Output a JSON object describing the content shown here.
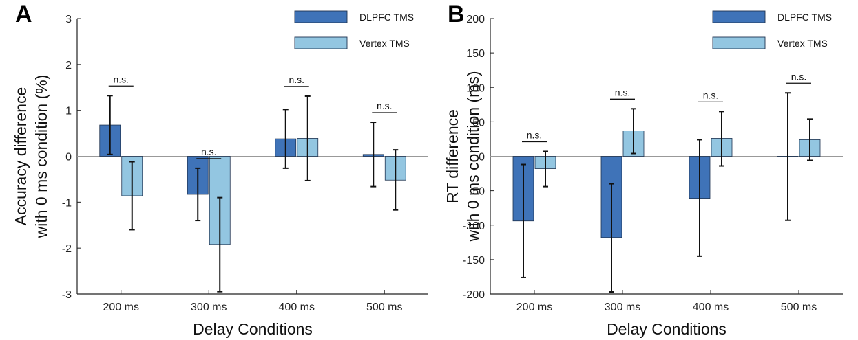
{
  "colors": {
    "dlpfc": "#3f73b8",
    "vertex": "#93c6e1",
    "axis": "#222222",
    "zero": "#999999"
  },
  "chart_data": [
    {
      "type": "bar",
      "panel_label": "A",
      "categories": [
        "200 ms",
        "300 ms",
        "400 ms",
        "500 ms"
      ],
      "xlabel": "Delay Conditions",
      "ylabel_lines": [
        "Accuracy difference",
        "with 0 ms condition (%)"
      ],
      "ylim": [
        -3,
        3
      ],
      "yticks": [
        -3,
        -2,
        -1,
        0,
        1,
        2,
        3
      ],
      "legend_position": "top-right",
      "significance_label": "n.s.",
      "series": [
        {
          "name": "DLPFC TMS",
          "values": [
            0.68,
            -0.83,
            0.38,
            0.04
          ],
          "err_low": [
            0.04,
            -1.4,
            -0.26,
            -0.66
          ],
          "err_high": [
            1.32,
            -0.26,
            1.02,
            0.74
          ]
        },
        {
          "name": "Vertex TMS",
          "values": [
            -0.86,
            -1.92,
            0.39,
            -0.52
          ],
          "err_low": [
            -1.6,
            -2.95,
            -0.53,
            -1.17
          ],
          "err_high": [
            -0.12,
            -0.9,
            1.31,
            0.14
          ]
        }
      ]
    },
    {
      "type": "bar",
      "panel_label": "B",
      "categories": [
        "200 ms",
        "300 ms",
        "400 ms",
        "500 ms"
      ],
      "xlabel": "Delay Conditions",
      "ylabel_lines": [
        "RT difference",
        "with 0 ms condition (ms)"
      ],
      "ylim": [
        -200,
        200
      ],
      "yticks": [
        -200,
        -150,
        -100,
        -50,
        0,
        50,
        100,
        150,
        200
      ],
      "legend_position": "top-right",
      "significance_label": "n.s.",
      "series": [
        {
          "name": "DLPFC TMS",
          "values": [
            -94,
            -118,
            -61,
            0
          ],
          "err_low": [
            -176,
            -197,
            -145,
            -93
          ],
          "err_high": [
            -12,
            -40,
            24,
            92
          ]
        },
        {
          "name": "Vertex TMS",
          "values": [
            -18,
            37,
            26,
            24
          ],
          "err_low": [
            -44,
            4,
            -14,
            -6
          ],
          "err_high": [
            7,
            69,
            65,
            54
          ]
        }
      ]
    }
  ]
}
